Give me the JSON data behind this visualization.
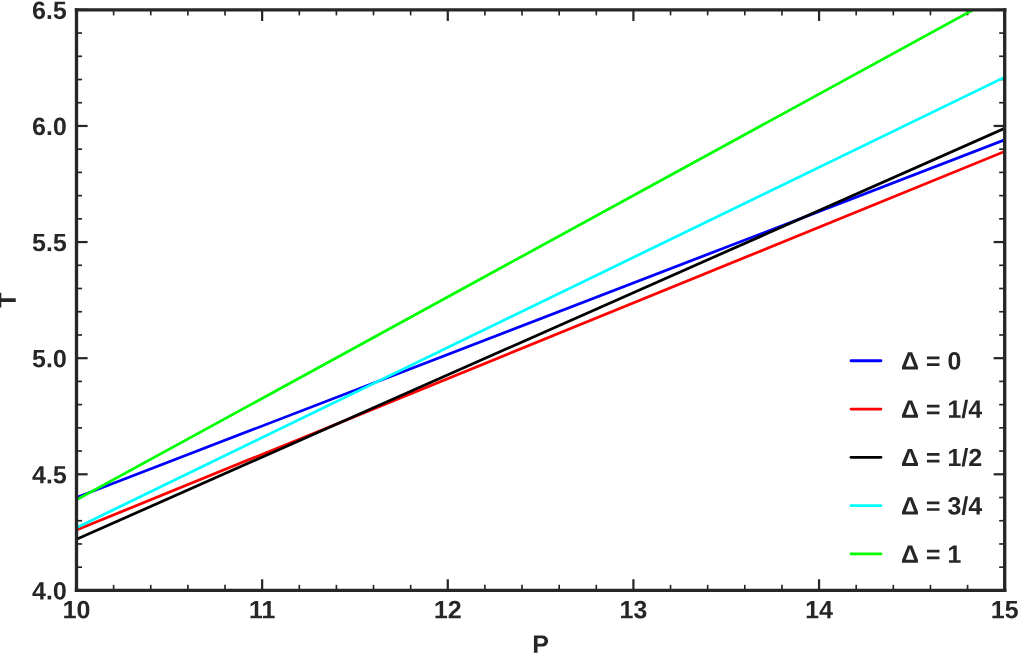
{
  "chart_data": {
    "type": "line",
    "xlabel": "P",
    "ylabel": "T",
    "xlim": [
      10,
      15
    ],
    "ylim": [
      4.0,
      6.5
    ],
    "xticks": [
      10,
      11,
      12,
      13,
      14,
      15
    ],
    "yticks": [
      {
        "value": 4.0,
        "label": "4.0"
      },
      {
        "value": 4.5,
        "label": "4.5"
      },
      {
        "value": 5.0,
        "label": "5.0"
      },
      {
        "value": 5.5,
        "label": "5.5"
      },
      {
        "value": 6.0,
        "label": "6.0"
      },
      {
        "value": 6.5,
        "label": "6.5"
      }
    ],
    "grid": false,
    "legend": "bottom right",
    "marker": "none",
    "line_style": "solid",
    "series": [
      {
        "name": "Δ = 0",
        "color": "#0000ff",
        "x": [
          10,
          15
        ],
        "values": [
          4.4,
          5.94
        ]
      },
      {
        "name": "Δ = 1/4",
        "color": "#ff0000",
        "x": [
          10,
          15
        ],
        "values": [
          4.26,
          5.89
        ]
      },
      {
        "name": "Δ = 1/2",
        "color": "#000000",
        "x": [
          10,
          15
        ],
        "values": [
          4.22,
          5.99
        ]
      },
      {
        "name": "Δ = 3/4",
        "color": "#00ffff",
        "x": [
          10,
          15
        ],
        "values": [
          4.27,
          6.21
        ]
      },
      {
        "name": "Δ = 1",
        "color": "#00ff00",
        "x": [
          10,
          14.83
        ],
        "values": [
          4.39,
          6.5
        ]
      }
    ]
  }
}
